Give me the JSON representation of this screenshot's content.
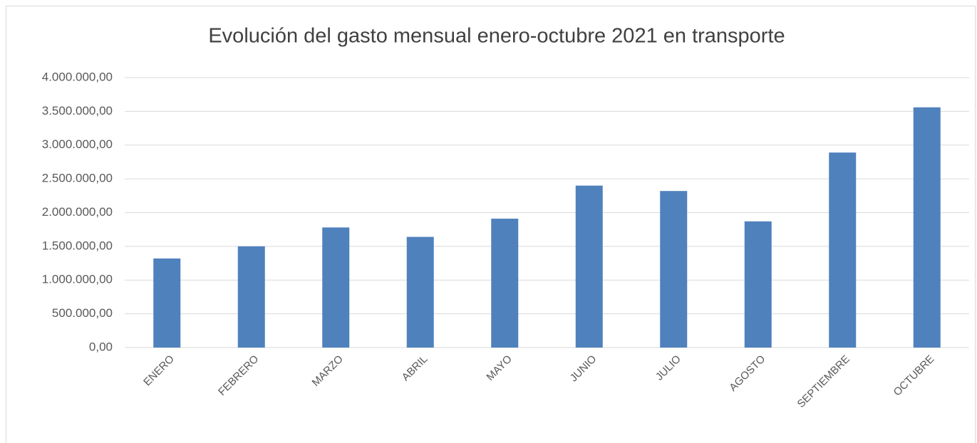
{
  "chart_data": {
    "type": "bar",
    "title": "Evolución del gasto mensual enero-octubre 2021 en transporte",
    "categories": [
      "ENERO",
      "FEBRERO",
      "MARZO",
      "ABRIL",
      "MAYO",
      "JUNIO",
      "JULIO",
      "AGOSTO",
      "SEPTIEMBRE",
      "OCTUBRE"
    ],
    "values": [
      1320000,
      1500000,
      1780000,
      1640000,
      1910000,
      2400000,
      2320000,
      1870000,
      2890000,
      3560000
    ],
    "color": "#4f81bd",
    "ylim": [
      0,
      4000000
    ],
    "yticks": [
      {
        "value": 0,
        "label": "0,00"
      },
      {
        "value": 500000,
        "label": "500.000,00"
      },
      {
        "value": 1000000,
        "label": "1.000.000,00"
      },
      {
        "value": 1500000,
        "label": "1.500.000,00"
      },
      {
        "value": 2000000,
        "label": "2.000.000,00"
      },
      {
        "value": 2500000,
        "label": "2.500.000,00"
      },
      {
        "value": 3000000,
        "label": "3.000.000,00"
      },
      {
        "value": 3500000,
        "label": "3.500.000,00"
      },
      {
        "value": 4000000,
        "label": "4.000.000,00"
      }
    ],
    "grid": true
  }
}
